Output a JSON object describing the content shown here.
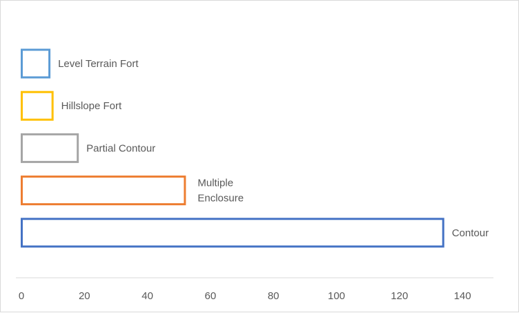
{
  "chart_data": {
    "type": "bar",
    "orientation": "horizontal",
    "fill": "none (outlined bars)",
    "categories": [
      "Level Terrain Fort",
      "Hillslope Fort",
      "Partial Contour",
      "Multiple Enclosure",
      "Contour"
    ],
    "category_label_lines": [
      [
        "Level Terrain Fort"
      ],
      [
        "Hillslope Fort"
      ],
      [
        "Partial Contour"
      ],
      [
        "Multiple",
        "Enclosure"
      ],
      [
        "Contour"
      ]
    ],
    "values": [
      9,
      10,
      18,
      52,
      134
    ],
    "colors": [
      "#5b9bd5",
      "#ffc000",
      "#a5a5a5",
      "#ed7d31",
      "#4472c4"
    ],
    "xlim": [
      0,
      150
    ],
    "xticks": [
      0,
      20,
      40,
      60,
      80,
      100,
      120,
      140
    ],
    "title": "",
    "xlabel": "",
    "ylabel": "",
    "labels_position": "beside bar end",
    "grid": false,
    "legend": "none"
  }
}
